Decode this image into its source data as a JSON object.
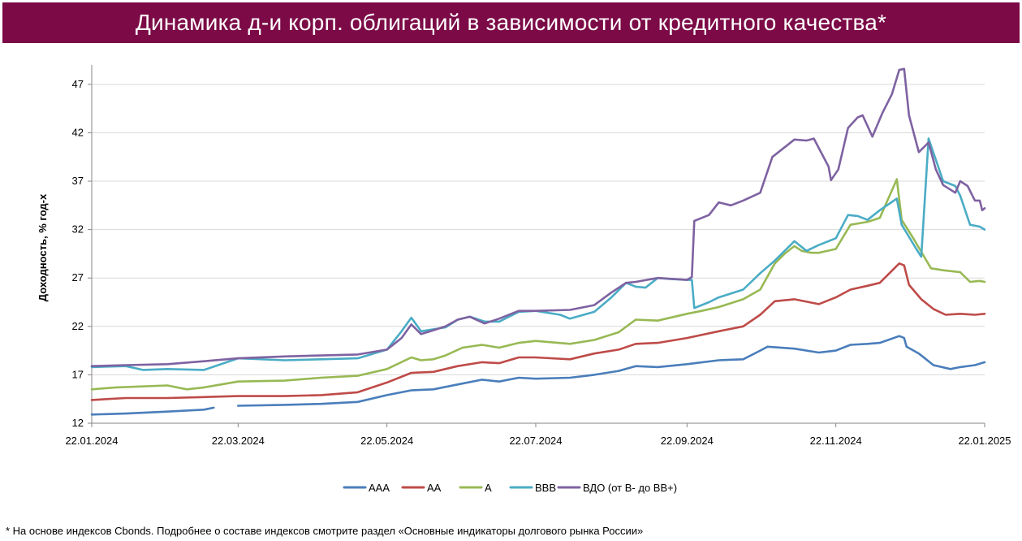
{
  "title": "Динамика д-и корп. облигаций в зависимости от кредитного качества*",
  "footnote": "* На основе индексов Cbonds. Подробнее о составе индексов смотрите раздел «Основные индикаторы долгового рынка России»",
  "colors": {
    "title_bg": "#7b0a46",
    "grid": "#d9d9d9",
    "axis": "#868686"
  },
  "chart_data": {
    "type": "line",
    "ylabel": "Доходность, % год-х",
    "xlabel": "",
    "ylim": [
      12,
      49
    ],
    "yticks": [
      12,
      17,
      22,
      27,
      32,
      37,
      42,
      47
    ],
    "xlim": [
      "2024-01-22",
      "2025-01-22"
    ],
    "xticks": [
      "2024-01-22",
      "2024-03-22",
      "2024-05-22",
      "2024-07-22",
      "2024-09-22",
      "2024-11-22",
      "2025-01-22"
    ],
    "xtick_labels": [
      "22.01.2024",
      "22.03.2024",
      "22.05.2024",
      "22.07.2024",
      "22.09.2024",
      "22.11.2024",
      "22.01.2025"
    ],
    "grid": true,
    "legend_position": "bottom",
    "series": [
      {
        "name": "AAA",
        "color": "#4a7ebb",
        "points": [
          [
            "2024-01-22",
            12.9
          ],
          [
            "2024-02-05",
            13.0
          ],
          [
            "2024-02-22",
            13.2
          ],
          [
            "2024-03-08",
            13.4
          ],
          [
            "2024-03-12",
            13.6
          ],
          [
            "2024-03-19",
            null
          ],
          [
            "2024-03-22",
            13.8
          ],
          [
            "2024-04-10",
            13.9
          ],
          [
            "2024-04-25",
            14.0
          ],
          [
            "2024-05-10",
            14.2
          ],
          [
            "2024-05-22",
            14.9
          ],
          [
            "2024-06-01",
            15.4
          ],
          [
            "2024-06-10",
            15.5
          ],
          [
            "2024-06-20",
            16.0
          ],
          [
            "2024-06-30",
            16.5
          ],
          [
            "2024-07-07",
            16.3
          ],
          [
            "2024-07-15",
            16.7
          ],
          [
            "2024-07-22",
            16.6
          ],
          [
            "2024-08-05",
            16.7
          ],
          [
            "2024-08-15",
            17.0
          ],
          [
            "2024-08-25",
            17.4
          ],
          [
            "2024-09-01",
            17.9
          ],
          [
            "2024-09-10",
            17.8
          ],
          [
            "2024-09-22",
            18.1
          ],
          [
            "2024-10-05",
            18.5
          ],
          [
            "2024-10-15",
            18.6
          ],
          [
            "2024-10-22",
            19.5
          ],
          [
            "2024-10-25",
            19.9
          ],
          [
            "2024-11-05",
            19.7
          ],
          [
            "2024-11-15",
            19.3
          ],
          [
            "2024-11-22",
            19.5
          ],
          [
            "2024-11-28",
            20.1
          ],
          [
            "2024-12-05",
            20.2
          ],
          [
            "2024-12-10",
            20.3
          ],
          [
            "2024-12-18",
            21.0
          ],
          [
            "2024-12-20",
            20.8
          ],
          [
            "2024-12-21",
            19.9
          ],
          [
            "2024-12-26",
            19.2
          ],
          [
            "2025-01-01",
            18.0
          ],
          [
            "2025-01-08",
            17.6
          ],
          [
            "2025-01-12",
            17.8
          ],
          [
            "2025-01-18",
            18.0
          ],
          [
            "2025-01-22",
            18.3
          ]
        ]
      },
      {
        "name": "AA",
        "color": "#be4b48",
        "points": [
          [
            "2024-01-22",
            14.4
          ],
          [
            "2024-02-05",
            14.6
          ],
          [
            "2024-02-22",
            14.6
          ],
          [
            "2024-03-08",
            14.7
          ],
          [
            "2024-03-22",
            14.8
          ],
          [
            "2024-04-10",
            14.8
          ],
          [
            "2024-04-25",
            14.9
          ],
          [
            "2024-05-10",
            15.2
          ],
          [
            "2024-05-22",
            16.2
          ],
          [
            "2024-06-01",
            17.2
          ],
          [
            "2024-06-10",
            17.3
          ],
          [
            "2024-06-20",
            17.9
          ],
          [
            "2024-06-30",
            18.3
          ],
          [
            "2024-07-07",
            18.2
          ],
          [
            "2024-07-15",
            18.8
          ],
          [
            "2024-07-22",
            18.8
          ],
          [
            "2024-08-05",
            18.6
          ],
          [
            "2024-08-15",
            19.2
          ],
          [
            "2024-08-25",
            19.6
          ],
          [
            "2024-09-01",
            20.2
          ],
          [
            "2024-09-10",
            20.3
          ],
          [
            "2024-09-22",
            20.8
          ],
          [
            "2024-10-05",
            21.5
          ],
          [
            "2024-10-15",
            22.0
          ],
          [
            "2024-10-22",
            23.2
          ],
          [
            "2024-10-28",
            24.6
          ],
          [
            "2024-11-05",
            24.8
          ],
          [
            "2024-11-15",
            24.3
          ],
          [
            "2024-11-22",
            25.0
          ],
          [
            "2024-11-28",
            25.8
          ],
          [
            "2024-12-05",
            26.2
          ],
          [
            "2024-12-10",
            26.5
          ],
          [
            "2024-12-18",
            28.5
          ],
          [
            "2024-12-20",
            28.3
          ],
          [
            "2024-12-22",
            26.3
          ],
          [
            "2024-12-27",
            24.8
          ],
          [
            "2025-01-01",
            23.8
          ],
          [
            "2025-01-06",
            23.2
          ],
          [
            "2025-01-12",
            23.3
          ],
          [
            "2025-01-18",
            23.2
          ],
          [
            "2025-01-22",
            23.3
          ]
        ]
      },
      {
        "name": "A",
        "color": "#98b954",
        "points": [
          [
            "2024-01-22",
            15.5
          ],
          [
            "2024-02-01",
            15.7
          ],
          [
            "2024-02-22",
            15.9
          ],
          [
            "2024-03-01",
            15.5
          ],
          [
            "2024-03-08",
            15.7
          ],
          [
            "2024-03-15",
            16.0
          ],
          [
            "2024-03-22",
            16.3
          ],
          [
            "2024-04-10",
            16.4
          ],
          [
            "2024-04-25",
            16.7
          ],
          [
            "2024-05-10",
            16.9
          ],
          [
            "2024-05-22",
            17.6
          ],
          [
            "2024-06-01",
            18.8
          ],
          [
            "2024-06-05",
            18.5
          ],
          [
            "2024-06-10",
            18.6
          ],
          [
            "2024-06-15",
            19.0
          ],
          [
            "2024-06-22",
            19.8
          ],
          [
            "2024-06-30",
            20.1
          ],
          [
            "2024-07-07",
            19.8
          ],
          [
            "2024-07-15",
            20.3
          ],
          [
            "2024-07-22",
            20.5
          ],
          [
            "2024-08-05",
            20.2
          ],
          [
            "2024-08-15",
            20.6
          ],
          [
            "2024-08-25",
            21.4
          ],
          [
            "2024-09-01",
            22.7
          ],
          [
            "2024-09-10",
            22.6
          ],
          [
            "2024-09-22",
            23.3
          ],
          [
            "2024-09-28",
            23.6
          ],
          [
            "2024-10-05",
            24.0
          ],
          [
            "2024-10-15",
            24.8
          ],
          [
            "2024-10-22",
            25.8
          ],
          [
            "2024-10-28",
            28.5
          ],
          [
            "2024-11-01",
            29.5
          ],
          [
            "2024-11-05",
            30.3
          ],
          [
            "2024-11-08",
            29.8
          ],
          [
            "2024-11-12",
            29.6
          ],
          [
            "2024-11-15",
            29.6
          ],
          [
            "2024-11-22",
            30.0
          ],
          [
            "2024-11-28",
            32.5
          ],
          [
            "2024-12-05",
            32.8
          ],
          [
            "2024-12-10",
            33.2
          ],
          [
            "2024-12-17",
            37.2
          ],
          [
            "2024-12-19",
            33.0
          ],
          [
            "2024-12-24",
            31.0
          ],
          [
            "2024-12-31",
            28.0
          ],
          [
            "2025-01-05",
            27.8
          ],
          [
            "2025-01-12",
            27.6
          ],
          [
            "2025-01-16",
            26.6
          ],
          [
            "2025-01-20",
            26.7
          ],
          [
            "2025-01-22",
            26.6
          ]
        ]
      },
      {
        "name": "BBB",
        "color": "#4aacc5",
        "points": [
          [
            "2024-01-22",
            17.8
          ],
          [
            "2024-02-05",
            17.9
          ],
          [
            "2024-02-12",
            17.5
          ],
          [
            "2024-02-22",
            17.6
          ],
          [
            "2024-03-08",
            17.5
          ],
          [
            "2024-03-22",
            18.7
          ],
          [
            "2024-04-10",
            18.5
          ],
          [
            "2024-04-25",
            18.6
          ],
          [
            "2024-05-10",
            18.7
          ],
          [
            "2024-05-22",
            19.6
          ],
          [
            "2024-05-28",
            21.5
          ],
          [
            "2024-06-01",
            22.9
          ],
          [
            "2024-06-05",
            21.5
          ],
          [
            "2024-06-10",
            21.7
          ],
          [
            "2024-06-15",
            21.9
          ],
          [
            "2024-06-20",
            22.7
          ],
          [
            "2024-06-25",
            23.0
          ],
          [
            "2024-07-01",
            22.5
          ],
          [
            "2024-07-07",
            22.5
          ],
          [
            "2024-07-15",
            23.5
          ],
          [
            "2024-07-22",
            23.6
          ],
          [
            "2024-08-01",
            23.2
          ],
          [
            "2024-08-05",
            22.8
          ],
          [
            "2024-08-15",
            23.5
          ],
          [
            "2024-08-22",
            25.0
          ],
          [
            "2024-08-28",
            26.5
          ],
          [
            "2024-09-01",
            26.1
          ],
          [
            "2024-09-05",
            26.0
          ],
          [
            "2024-09-10",
            27.0
          ],
          [
            "2024-09-15",
            26.9
          ],
          [
            "2024-09-22",
            26.8
          ],
          [
            "2024-09-24",
            26.8
          ],
          [
            "2024-09-25",
            23.9
          ],
          [
            "2024-10-01",
            24.5
          ],
          [
            "2024-10-05",
            25.0
          ],
          [
            "2024-10-15",
            25.8
          ],
          [
            "2024-10-22",
            27.5
          ],
          [
            "2024-10-28",
            28.8
          ],
          [
            "2024-11-05",
            30.8
          ],
          [
            "2024-11-10",
            29.8
          ],
          [
            "2024-11-15",
            30.4
          ],
          [
            "2024-11-22",
            31.1
          ],
          [
            "2024-11-27",
            33.5
          ],
          [
            "2024-12-01",
            33.4
          ],
          [
            "2024-12-05",
            33.0
          ],
          [
            "2024-12-10",
            34.0
          ],
          [
            "2024-12-17",
            35.2
          ],
          [
            "2024-12-19",
            32.5
          ],
          [
            "2024-12-25",
            30.0
          ],
          [
            "2024-12-27",
            29.2
          ],
          [
            "2024-12-30",
            41.4
          ],
          [
            "2025-01-05",
            37.0
          ],
          [
            "2025-01-10",
            36.5
          ],
          [
            "2025-01-12",
            35.5
          ],
          [
            "2025-01-16",
            32.5
          ],
          [
            "2025-01-20",
            32.3
          ],
          [
            "2025-01-22",
            32.0
          ]
        ]
      },
      {
        "name": "ВДО (от В- до ВВ+)",
        "color": "#7e62a1",
        "points": [
          [
            "2024-01-22",
            17.9
          ],
          [
            "2024-02-05",
            18.0
          ],
          [
            "2024-02-22",
            18.1
          ],
          [
            "2024-03-08",
            18.4
          ],
          [
            "2024-03-22",
            18.7
          ],
          [
            "2024-04-10",
            18.9
          ],
          [
            "2024-04-25",
            19.0
          ],
          [
            "2024-05-10",
            19.1
          ],
          [
            "2024-05-22",
            19.6
          ],
          [
            "2024-05-28",
            20.8
          ],
          [
            "2024-06-01",
            22.2
          ],
          [
            "2024-06-05",
            21.2
          ],
          [
            "2024-06-10",
            21.6
          ],
          [
            "2024-06-15",
            22.0
          ],
          [
            "2024-06-20",
            22.7
          ],
          [
            "2024-06-25",
            23.0
          ],
          [
            "2024-07-01",
            22.3
          ],
          [
            "2024-07-07",
            22.8
          ],
          [
            "2024-07-15",
            23.6
          ],
          [
            "2024-07-22",
            23.6
          ],
          [
            "2024-08-05",
            23.7
          ],
          [
            "2024-08-15",
            24.2
          ],
          [
            "2024-08-22",
            25.5
          ],
          [
            "2024-08-28",
            26.5
          ],
          [
            "2024-09-01",
            26.6
          ],
          [
            "2024-09-10",
            27.0
          ],
          [
            "2024-09-22",
            26.8
          ],
          [
            "2024-09-24",
            27.1
          ],
          [
            "2024-09-25",
            32.9
          ],
          [
            "2024-10-01",
            33.5
          ],
          [
            "2024-10-05",
            34.8
          ],
          [
            "2024-10-10",
            34.5
          ],
          [
            "2024-10-15",
            35.0
          ],
          [
            "2024-10-22",
            35.8
          ],
          [
            "2024-10-27",
            39.5
          ],
          [
            "2024-11-01",
            40.5
          ],
          [
            "2024-11-05",
            41.3
          ],
          [
            "2024-11-10",
            41.2
          ],
          [
            "2024-11-13",
            41.4
          ],
          [
            "2024-11-19",
            38.5
          ],
          [
            "2024-11-20",
            37.1
          ],
          [
            "2024-11-23",
            38.2
          ],
          [
            "2024-11-27",
            42.5
          ],
          [
            "2024-12-01",
            43.6
          ],
          [
            "2024-12-03",
            43.8
          ],
          [
            "2024-12-07",
            41.6
          ],
          [
            "2024-12-11",
            44.0
          ],
          [
            "2024-12-15",
            46.0
          ],
          [
            "2024-12-18",
            48.5
          ],
          [
            "2024-12-20",
            48.6
          ],
          [
            "2024-12-22",
            43.8
          ],
          [
            "2024-12-26",
            40.0
          ],
          [
            "2024-12-30",
            41.0
          ],
          [
            "2025-01-02",
            38.2
          ],
          [
            "2025-01-05",
            36.6
          ],
          [
            "2025-01-10",
            35.8
          ],
          [
            "2025-01-12",
            37.0
          ],
          [
            "2025-01-15",
            36.5
          ],
          [
            "2025-01-18",
            35.0
          ],
          [
            "2025-01-20",
            35.0
          ],
          [
            "2025-01-21",
            34.0
          ],
          [
            "2025-01-22",
            34.2
          ]
        ]
      }
    ]
  }
}
